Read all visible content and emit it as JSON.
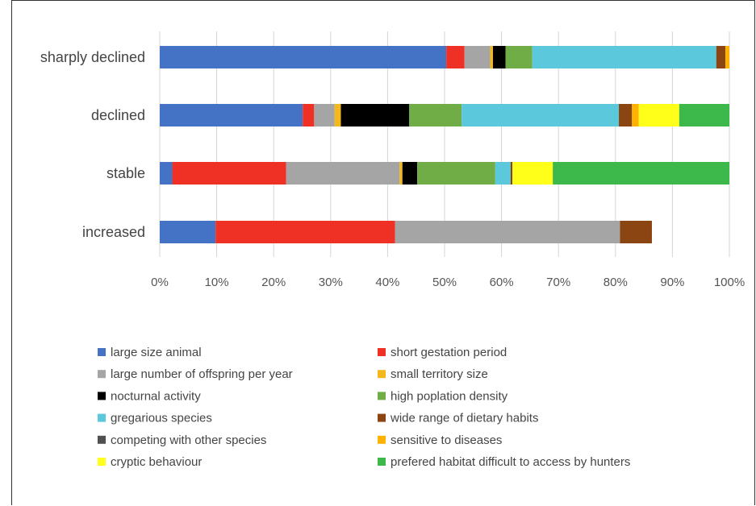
{
  "chart_data": {
    "type": "bar",
    "orientation": "horizontal",
    "stacked": true,
    "normalized": true,
    "categories": [
      "sharply declined",
      "declined",
      "stable",
      "increased"
    ],
    "x_ticks": [
      "0%",
      "10%",
      "20%",
      "30%",
      "40%",
      "50%",
      "60%",
      "70%",
      "80%",
      "90%",
      "100%"
    ],
    "xlim": [
      0,
      100
    ],
    "grid": true,
    "legend_position": "bottom",
    "series": [
      {
        "name": "large size animal",
        "color": "#4472C4",
        "values": [
          50.3,
          25.1,
          2.2,
          9.8
        ]
      },
      {
        "name": "short gestation period",
        "color": "#EE3124",
        "values": [
          3.2,
          2.0,
          20.0,
          31.5
        ]
      },
      {
        "name": "large number of offspring per year",
        "color": "#A5A5A5",
        "values": [
          4.5,
          3.6,
          19.9,
          39.5
        ]
      },
      {
        "name": "small territory size",
        "color": "#F4B71C",
        "values": [
          0.5,
          1.1,
          0.5,
          0
        ]
      },
      {
        "name": "nocturnal activity",
        "color": "#000000",
        "values": [
          2.2,
          12.0,
          2.6,
          0
        ]
      },
      {
        "name": "high poplation density",
        "color": "#70AD47",
        "values": [
          4.7,
          9.2,
          13.7,
          0
        ]
      },
      {
        "name": "gregarious species",
        "color": "#5BC8DB",
        "values": [
          32.3,
          27.6,
          2.7,
          0
        ]
      },
      {
        "name": "wide range of dietary habits",
        "color": "#8B4513",
        "values": [
          1.6,
          2.3,
          0.3,
          5.6
        ]
      },
      {
        "name": "competing with other species",
        "color": "#505050",
        "values": [
          0,
          0,
          0,
          0
        ]
      },
      {
        "name": "sensitive to diseases",
        "color": "#FFB300",
        "values": [
          0.7,
          1.2,
          0,
          0
        ]
      },
      {
        "name": "cryptic behaviour",
        "color": "#FFFF1A",
        "values": [
          0,
          7.1,
          7.1,
          0
        ]
      },
      {
        "name": "prefered habitat difficult to access by hunters",
        "color": "#3CB94A",
        "values": [
          0,
          8.8,
          31.0,
          0
        ]
      }
    ]
  }
}
